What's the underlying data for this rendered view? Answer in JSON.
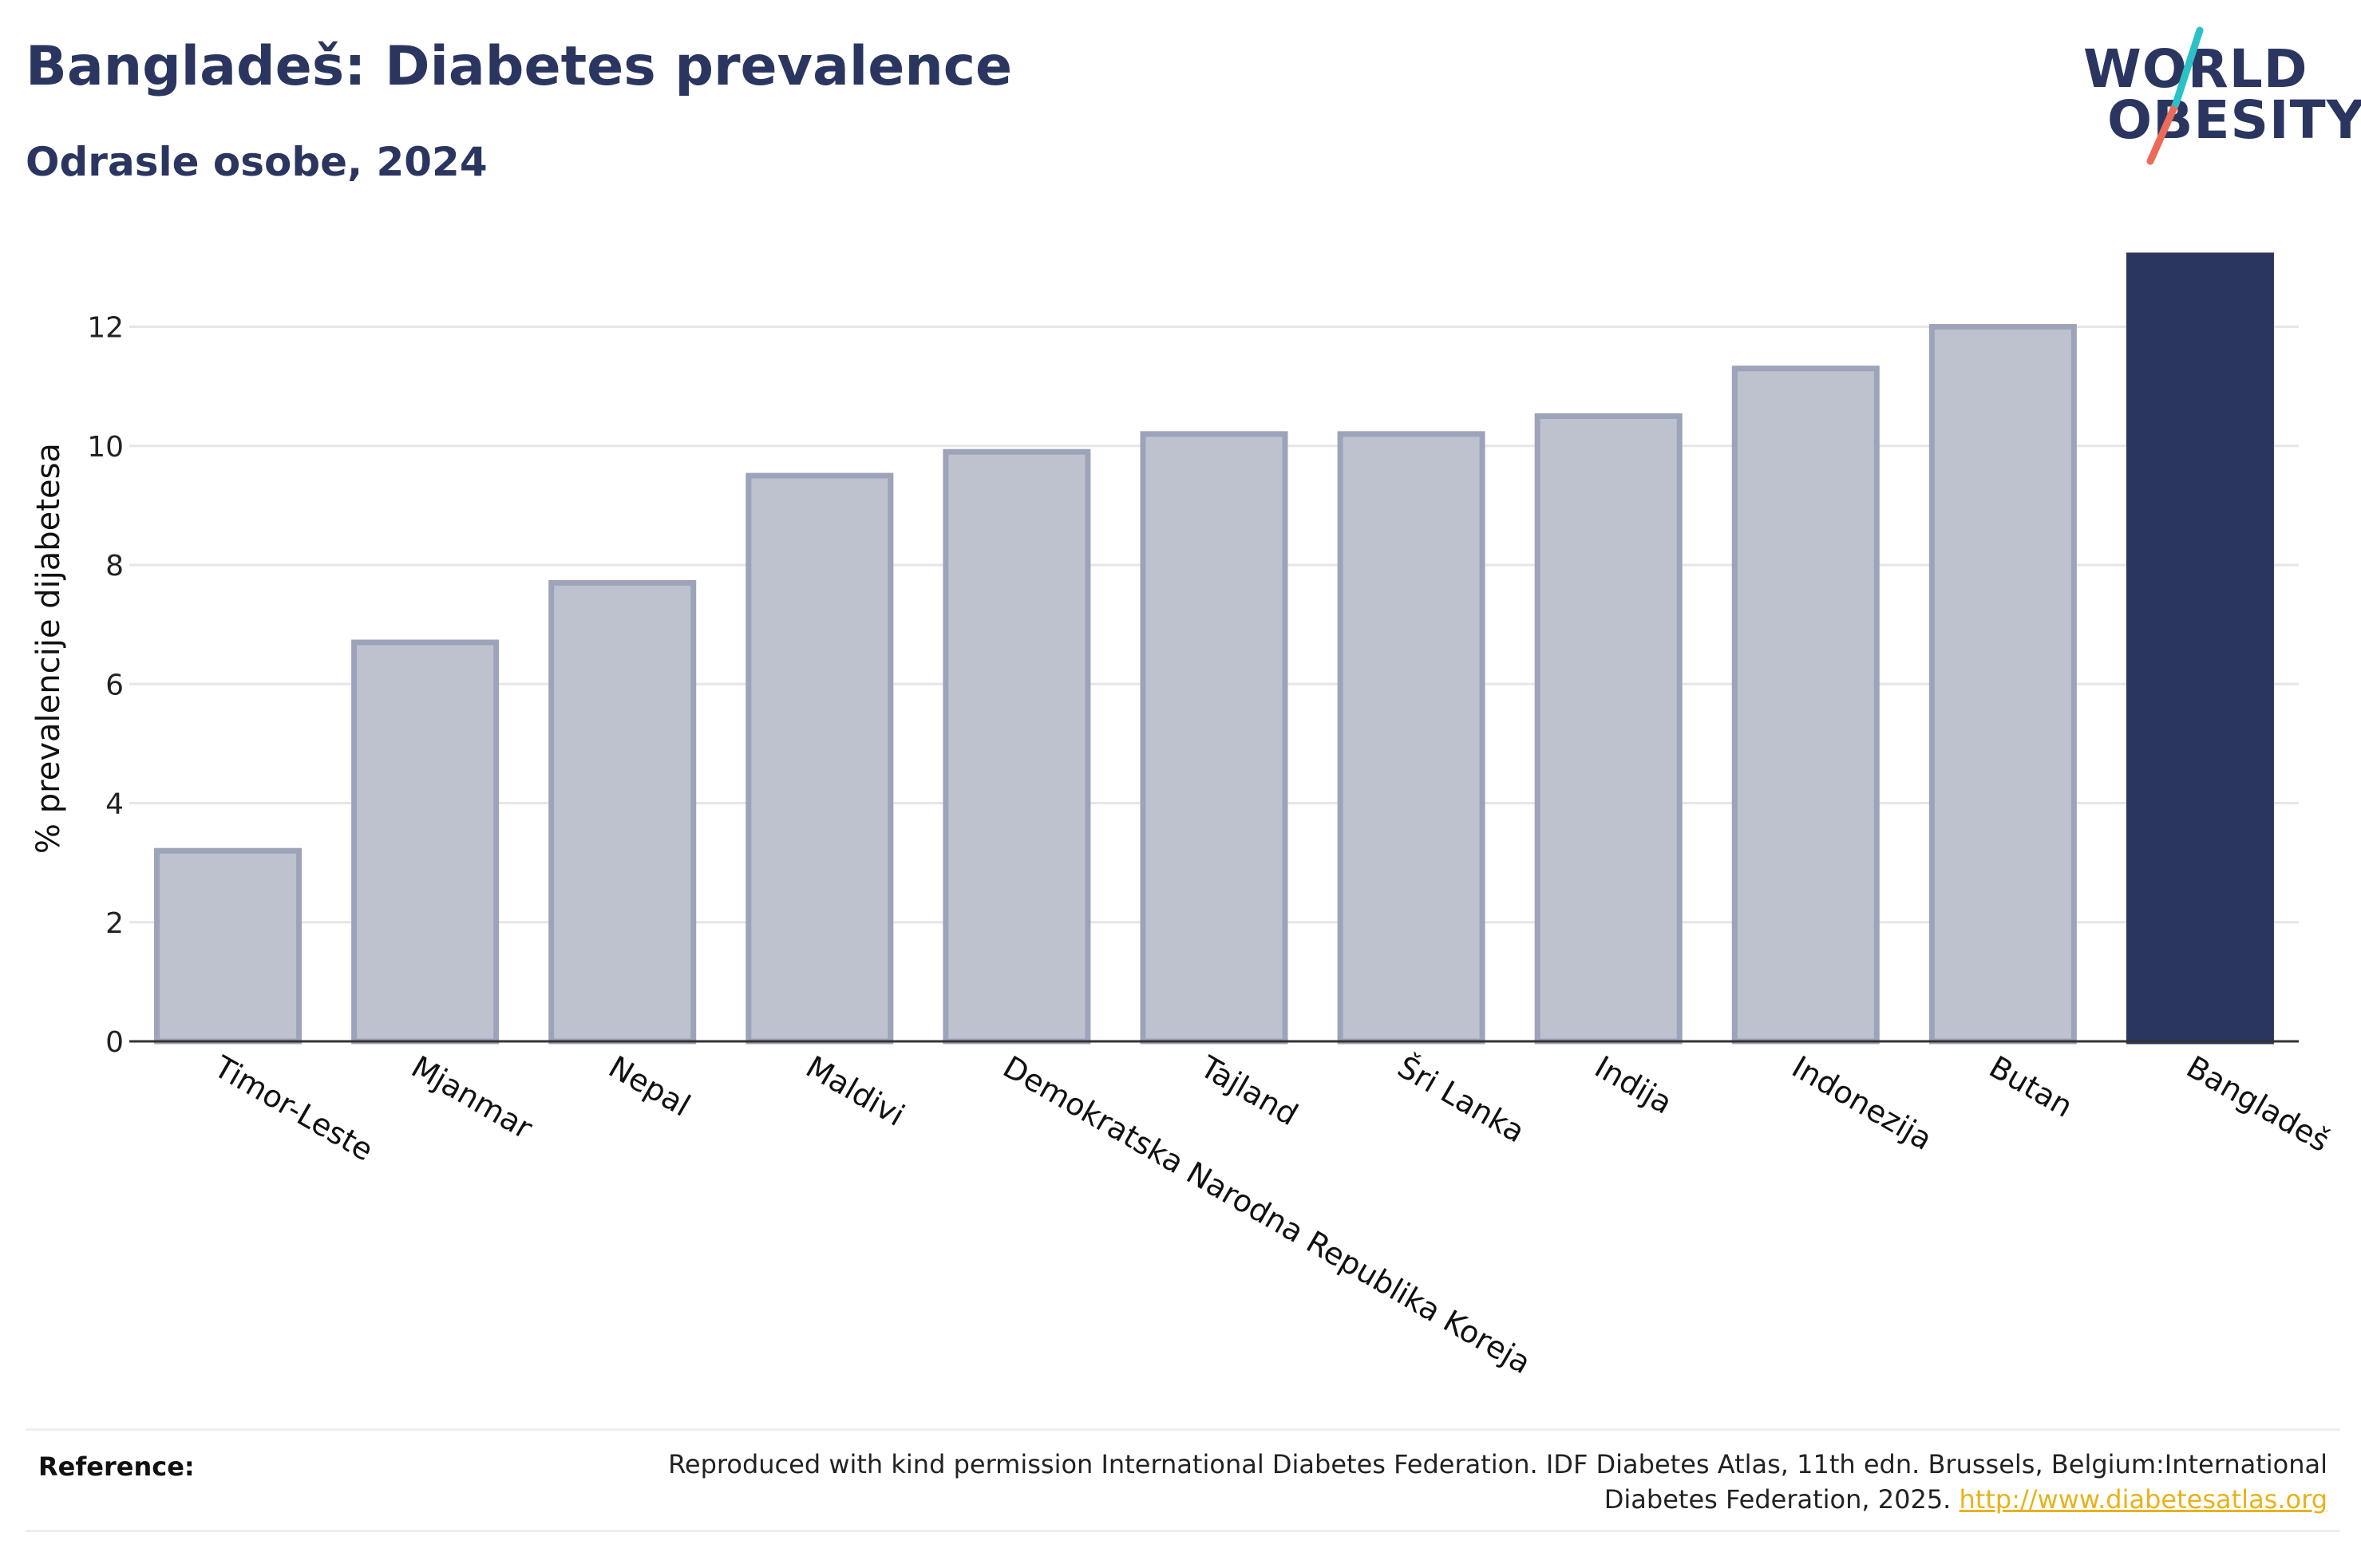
{
  "header": {
    "title": "Bangladeš: Diabetes prevalence",
    "subtitle": "Odrasle osobe, 2024"
  },
  "logo": {
    "line1": "WORLD",
    "line2": "OBESITY"
  },
  "colors": {
    "highlight": "#2b3660",
    "bar_fill": "#bec2cf",
    "bar_stroke": "#9da3b8",
    "text": "#2b3660",
    "logo_teal": "#2cc1c6",
    "logo_coral": "#ec6a5a",
    "link": "#e8b21a"
  },
  "chart_data": {
    "type": "bar",
    "title": "Bangladeš: Diabetes prevalence",
    "subtitle": "Odrasle osobe, 2024",
    "xlabel": "",
    "ylabel": "% prevalencije dijabetesa",
    "categories": [
      "Timor-Leste",
      "Mjanmar",
      "Nepal",
      "Maldivi",
      "Demokratska Narodna Republika Koreja",
      "Tajland",
      "Šri Lanka",
      "Indija",
      "Indonezija",
      "Butan",
      "Bangladeš"
    ],
    "values": [
      3.2,
      6.7,
      7.7,
      9.5,
      9.9,
      10.2,
      10.2,
      10.5,
      11.3,
      12.0,
      13.2
    ],
    "highlight": "Bangladeš",
    "ylim": [
      0,
      13.2
    ],
    "yticks": [
      0,
      2,
      4,
      6,
      8,
      10,
      12
    ],
    "grid": true,
    "legend": "none"
  },
  "footer": {
    "reference_label": "Reference:",
    "reference_text": "Reproduced with kind permission International Diabetes Federation. IDF Diabetes Atlas, 11th edn. Brussels, Belgium:International Diabetes Federation, 2025.",
    "reference_link": "http://www.diabetesatlas.org"
  }
}
